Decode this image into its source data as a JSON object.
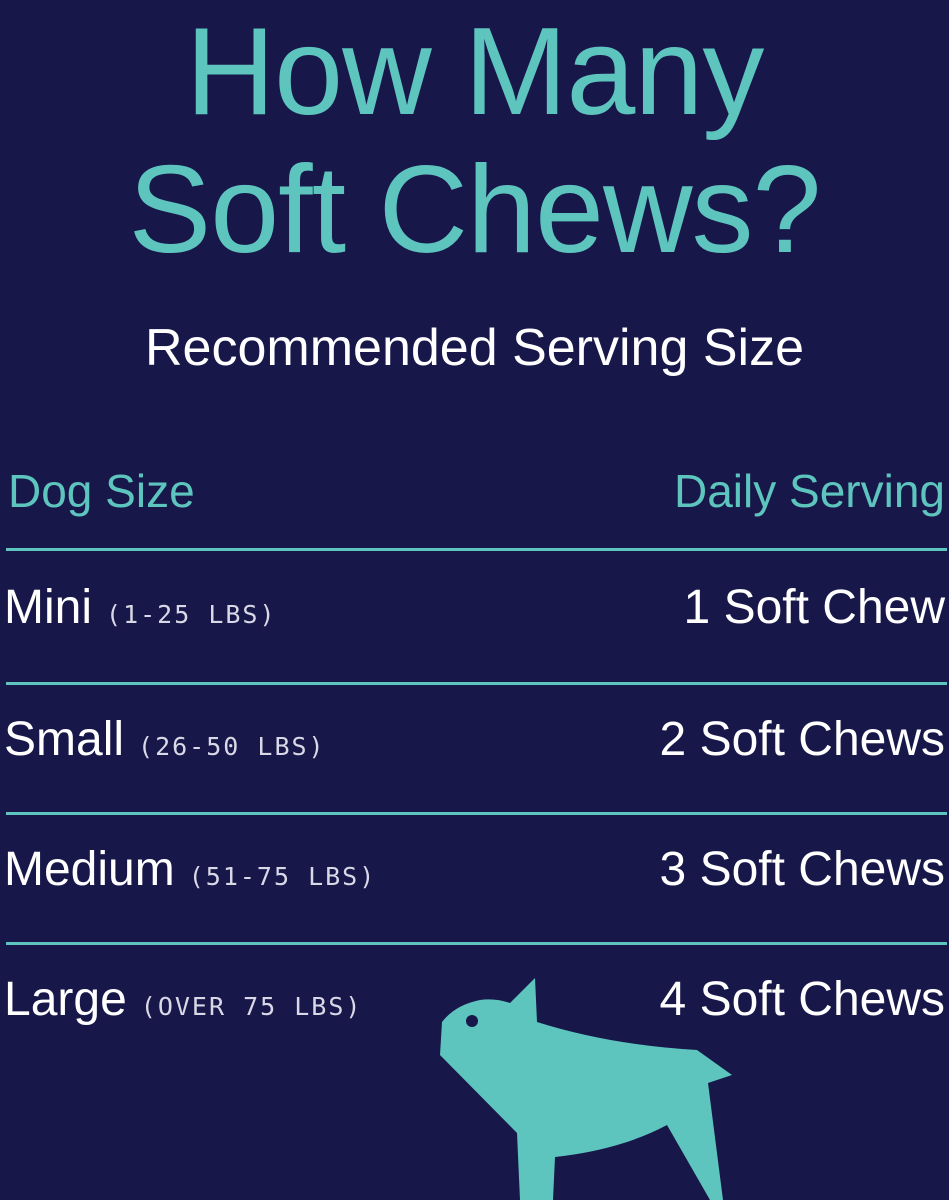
{
  "title": {
    "line1": "How Many",
    "line2": "Soft Chews?"
  },
  "subtitle": "Recommended Serving Size",
  "table": {
    "headers": {
      "left": "Dog Size",
      "right": "Daily Serving"
    },
    "rows": [
      {
        "size": "Mini",
        "range": "(1-25 LBS)",
        "serving": "1 Soft Chew"
      },
      {
        "size": "Small",
        "range": "(26-50 LBS)",
        "serving": "2 Soft Chews"
      },
      {
        "size": "Medium",
        "range": "(51-75 LBS)",
        "serving": "3 Soft Chews"
      },
      {
        "size": "Large",
        "range": "(OVER 75 LBS)",
        "serving": "4 Soft Chews"
      }
    ]
  },
  "colors": {
    "background": "#17174a",
    "accent": "#5ec4be",
    "text": "#ffffff"
  },
  "illustration": "dog-silhouette-icon"
}
